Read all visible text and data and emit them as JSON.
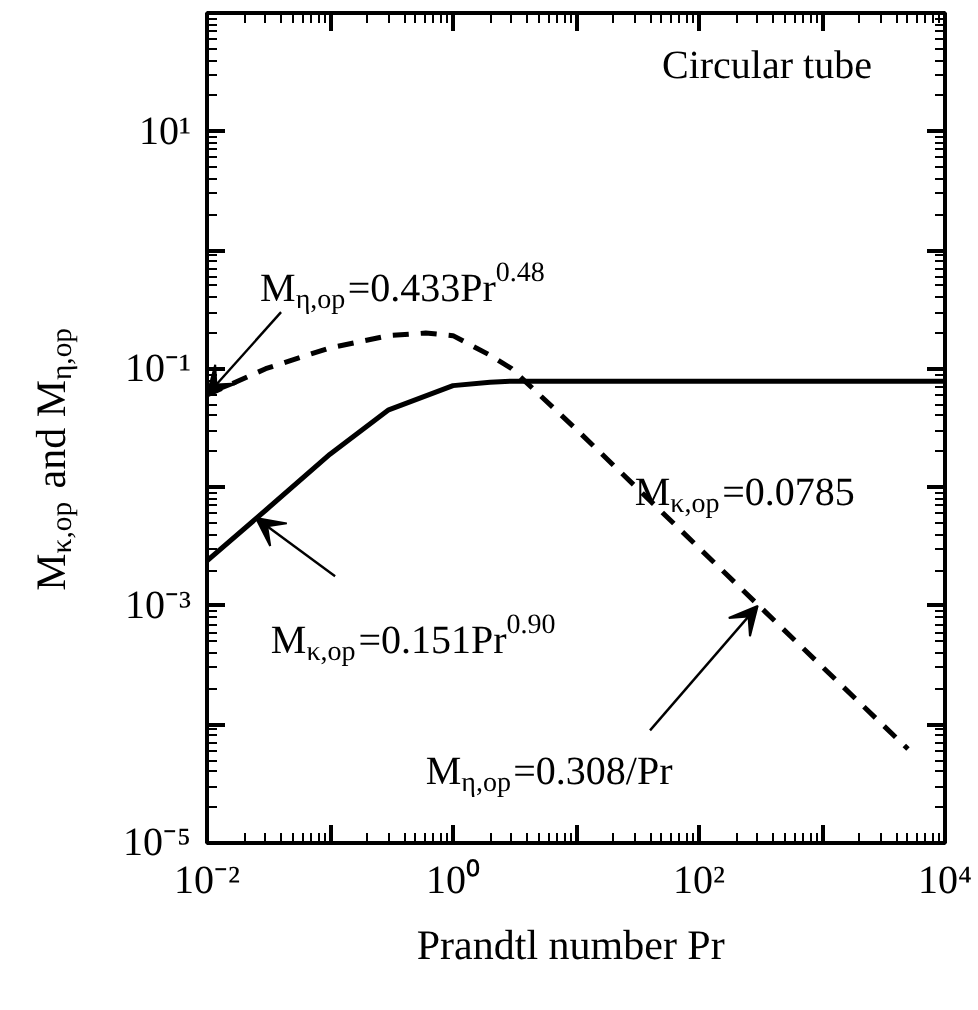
{
  "chart_data": {
    "type": "line",
    "xlabel": "Prandtl number  Pr",
    "ylabel": "M$_{κ,op}$ and M$_{η,op}$",
    "log": "xy",
    "xlim": [
      0.01,
      10000
    ],
    "ylim": [
      1e-05,
      100
    ],
    "xticks": [
      {
        "value": 0.01,
        "label": "10⁻²"
      },
      {
        "value": 0.1,
        "label": null
      },
      {
        "value": 1,
        "label": "10⁰"
      },
      {
        "value": 10,
        "label": null
      },
      {
        "value": 100,
        "label": "10²"
      },
      {
        "value": 1000,
        "label": null
      },
      {
        "value": 10000,
        "label": "10⁴"
      }
    ],
    "yticks": [
      {
        "value": 1e-05,
        "label": "10⁻⁵"
      },
      {
        "value": 0.0001,
        "label": null
      },
      {
        "value": 0.001,
        "label": "10⁻³"
      },
      {
        "value": 0.01,
        "label": null
      },
      {
        "value": 0.1,
        "label": "10⁻¹"
      },
      {
        "value": 1,
        "label": null
      },
      {
        "value": 10,
        "label": "10¹"
      },
      {
        "value": 100,
        "label": null
      }
    ],
    "grid": false,
    "series": [
      {
        "color": "#000000",
        "line_style": "solid",
        "x": [
          0.01,
          0.03,
          0.1,
          0.3,
          1,
          2,
          3,
          10,
          100,
          1000,
          10000
        ],
        "values": [
          0.0024,
          0.0064,
          0.019,
          0.045,
          0.072,
          0.077,
          0.0785,
          0.0785,
          0.0785,
          0.0785,
          0.0785
        ]
      },
      {
        "color": "#000000",
        "line_style": "dashed",
        "x": [
          0.01,
          0.03,
          0.1,
          0.3,
          0.6,
          1,
          2,
          3,
          10,
          100,
          1000,
          5000
        ],
        "values": [
          0.06,
          0.1,
          0.15,
          0.19,
          0.2,
          0.19,
          0.13,
          0.1,
          0.031,
          0.00308,
          0.000308,
          6.2e-05
        ]
      }
    ],
    "annotations": [
      "Circular tube",
      {
        "text": "M$_{η,op}$=0.433Pr$^{0.48}$",
        "x": 0.01,
        "y": 0.06
      },
      "M$_{κ,op}$=0.0785",
      {
        "text": "M$_{κ,op}$=0.151Pr$^{0.90}$",
        "x": 0.025,
        "y": 0.0055
      },
      {
        "text": "M$_{η,op}$=0.308/Pr",
        "x": 300,
        "y": 0.001
      }
    ]
  }
}
